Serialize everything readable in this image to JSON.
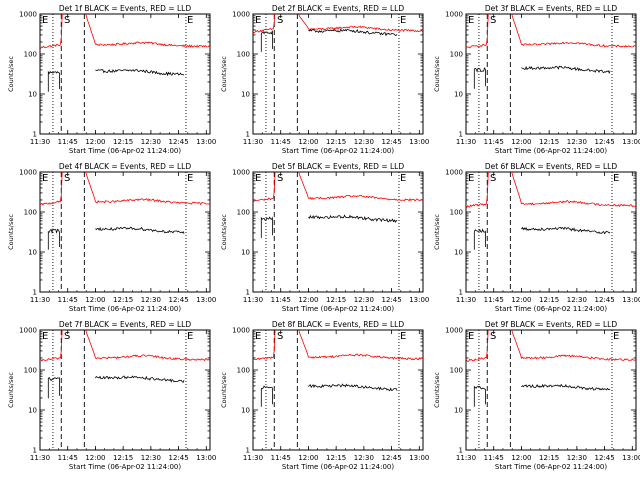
{
  "figure": {
    "panels": [
      {
        "title": "Det 1f BLACK = Events, RED = LLD",
        "s": 2,
        "e": 1,
        "red_base": 170,
        "black_base": 38
      },
      {
        "title": "Det 2f BLACK = Events, RED = LLD",
        "s": 2,
        "e": 1,
        "red_base": 420,
        "black_base": 380
      },
      {
        "title": "Det 3f BLACK = Events, RED = LLD",
        "s": 2,
        "e": 1,
        "red_base": 170,
        "black_base": 45
      },
      {
        "title": "Det 4f BLACK = Events, RED = LLD",
        "s": 2,
        "e": 1,
        "red_base": 180,
        "black_base": 38
      },
      {
        "title": "Det 5f BLACK = Events, RED = LLD",
        "s": 2,
        "e": 1,
        "red_base": 220,
        "black_base": 75
      },
      {
        "title": "Det 6f BLACK = Events, RED = LLD",
        "s": 2,
        "e": 1,
        "red_base": 160,
        "black_base": 38
      },
      {
        "title": "Det 7f BLACK = Events, RED = LLD",
        "s": 2,
        "e": 1,
        "red_base": 200,
        "black_base": 65
      },
      {
        "title": "Det 8f BLACK = Events, RED = LLD",
        "s": 2,
        "e": 1,
        "red_base": 210,
        "black_base": 40
      },
      {
        "title": "Det 9f BLACK = Events, RED = LLD",
        "s": 2,
        "e": 1,
        "red_base": 200,
        "black_base": 40
      }
    ]
  },
  "chart_data": {
    "type": "line",
    "xlabel": "Start Time (06-Apr-02 11:24:00)",
    "ylabel": "Counts/sec",
    "xticks": [
      "11:30",
      "11:45",
      "12:00",
      "12:15",
      "12:30",
      "12:45",
      "13:00"
    ],
    "xlim_minutes_after_start": [
      6,
      98
    ],
    "y_scale": "log",
    "ylim": [
      1,
      1000
    ],
    "yticks": [
      "1",
      "10",
      "100",
      "1000"
    ],
    "series_colors": {
      "events": "#000000",
      "lld": "#ff0000"
    },
    "markers": {
      "s_label": "S",
      "e_label": "E"
    }
  }
}
